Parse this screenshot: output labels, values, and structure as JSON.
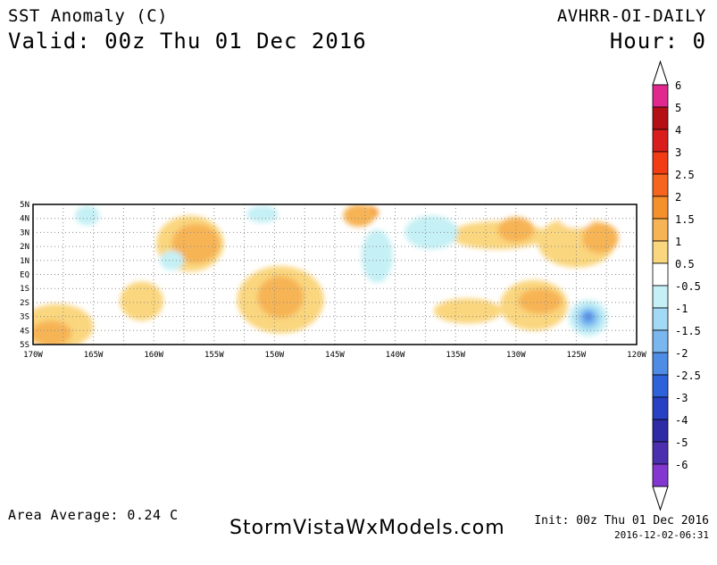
{
  "header": {
    "title": "SST Anomaly (C)",
    "valid": "Valid: 00z Thu 01 Dec 2016",
    "source": "AVHRR-OI-DAILY",
    "hour": "Hour: 0"
  },
  "map": {
    "lat_labels": [
      "5N",
      "4N",
      "3N",
      "2N",
      "1N",
      "EQ",
      "1S",
      "2S",
      "3S",
      "4S",
      "5S"
    ],
    "lon_labels": [
      "170W",
      "165W",
      "160W",
      "155W",
      "150W",
      "145W",
      "140W",
      "135W",
      "130W",
      "125W",
      "120W"
    ],
    "anomaly_areas": [
      {
        "lon": -142.2,
        "lat": 4.4,
        "rx": 0.8,
        "ry": 0.5,
        "value": 2
      },
      {
        "lon": -143.0,
        "lat": 4.2,
        "rx": 1.3,
        "ry": 0.8,
        "value": 1.5
      },
      {
        "lon": -157.0,
        "lat": 2.2,
        "rx": 2.8,
        "ry": 2.0,
        "value": 1
      },
      {
        "lon": -156.5,
        "lat": 2.2,
        "rx": 2.0,
        "ry": 1.4,
        "value": 1.5
      },
      {
        "lon": -125.0,
        "lat": 2.3,
        "rx": 3.2,
        "ry": 1.8,
        "value": 1
      },
      {
        "lon": -123.0,
        "lat": 2.6,
        "rx": 1.5,
        "ry": 1.1,
        "value": 1.5
      },
      {
        "lon": -131.5,
        "lat": 2.8,
        "rx": 4.0,
        "ry": 1.0,
        "value": 1
      },
      {
        "lon": -130.0,
        "lat": 3.2,
        "rx": 1.5,
        "ry": 0.9,
        "value": 1.5
      },
      {
        "lon": -149.5,
        "lat": -1.8,
        "rx": 3.6,
        "ry": 2.4,
        "value": 1
      },
      {
        "lon": -149.5,
        "lat": -1.6,
        "rx": 1.9,
        "ry": 1.5,
        "value": 1.5
      },
      {
        "lon": -128.5,
        "lat": -2.2,
        "rx": 2.8,
        "ry": 1.8,
        "value": 1
      },
      {
        "lon": -128.0,
        "lat": -1.9,
        "rx": 1.8,
        "ry": 0.9,
        "value": 1.5
      },
      {
        "lon": -168.0,
        "lat": -3.7,
        "rx": 3.0,
        "ry": 1.6,
        "value": 1
      },
      {
        "lon": -168.5,
        "lat": -4.2,
        "rx": 1.7,
        "ry": 0.9,
        "value": 1.5
      },
      {
        "lon": -161.0,
        "lat": -1.9,
        "rx": 1.8,
        "ry": 1.4,
        "value": 1
      },
      {
        "lon": -134.0,
        "lat": -2.6,
        "rx": 2.8,
        "ry": 0.9,
        "value": 1
      },
      {
        "lon": -125.0,
        "lat": 4.2,
        "rx": 1.5,
        "ry": 0.9,
        "value": 0.5
      },
      {
        "lon": -165.5,
        "lat": 4.2,
        "rx": 1.0,
        "ry": 0.7,
        "value": -0.5
      },
      {
        "lon": -141.5,
        "lat": 1.3,
        "rx": 1.3,
        "ry": 1.9,
        "value": -0.5
      },
      {
        "lon": -137.0,
        "lat": 3.0,
        "rx": 2.2,
        "ry": 1.2,
        "value": -0.5
      },
      {
        "lon": -158.5,
        "lat": 1.0,
        "rx": 1.0,
        "ry": 0.7,
        "value": -0.5
      },
      {
        "lon": -151.0,
        "lat": 4.3,
        "rx": 1.3,
        "ry": 0.6,
        "value": -0.5
      },
      {
        "lon": -124.0,
        "lat": -3.1,
        "rx": 1.6,
        "ry": 1.3,
        "value": -0.5
      },
      {
        "lon": -124.0,
        "lat": -3.1,
        "rx": 1.1,
        "ry": 0.9,
        "value": -1
      },
      {
        "lon": -124.0,
        "lat": -3.1,
        "rx": 0.7,
        "ry": 0.6,
        "value": -1.5
      },
      {
        "lon": -124.0,
        "lat": -3.0,
        "rx": 0.4,
        "ry": 0.35,
        "value": -2
      }
    ]
  },
  "colorbar": {
    "labels": [
      "6",
      "5",
      "4",
      "3",
      "2.5",
      "2",
      "1.5",
      "1",
      "0.5",
      "-0.5",
      "-1",
      "-1.5",
      "-2",
      "-2.5",
      "-3",
      "-4",
      "-5",
      "-6"
    ],
    "colors": [
      "#e0288f",
      "#b40f14",
      "#d91d1d",
      "#f23c14",
      "#f5651f",
      "#f5912d",
      "#f7b454",
      "#fad67e",
      "#ffffff",
      "#c5f0f5",
      "#a2d9f4",
      "#7ab7ef",
      "#4f8ce6",
      "#2e62da",
      "#2840c4",
      "#2f2aa6",
      "#4c2fae",
      "#8437d0"
    ],
    "color_values": [
      6,
      5,
      4,
      3,
      2.5,
      2,
      1.5,
      1,
      0.5,
      -0.5,
      -1,
      -1.5,
      -2,
      -2.5,
      -3,
      -4,
      -5,
      -6
    ]
  },
  "footer": {
    "area_average": "Area Average: 0.24 C",
    "site": "StormVistaWxModels.com",
    "init": "Init: 00z Thu 01 Dec 2016",
    "stamp": "2016-12-02-06:31"
  }
}
